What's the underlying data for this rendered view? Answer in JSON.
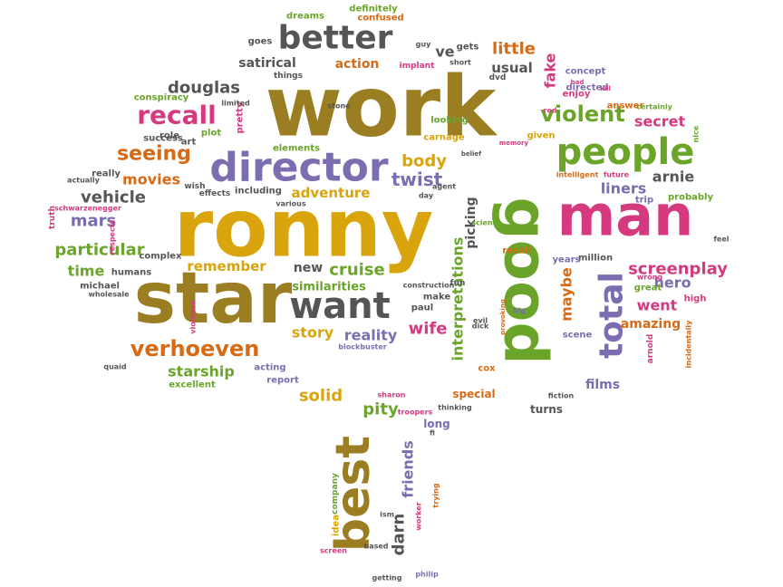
{
  "palette": {
    "olive": "#9b7d22",
    "gray": "#555555",
    "mustard": "#d9a40c",
    "orange": "#d86a16",
    "purple": "#7b6db0",
    "green": "#6aa52a",
    "pink": "#d63a7e"
  },
  "words": [
    "work",
    "ronny",
    "star",
    "good",
    "man",
    "best",
    "director",
    "people",
    "better",
    "total",
    "want",
    "violent",
    "recall",
    "douglas",
    "seeing",
    "verhoeven",
    "twist",
    "body",
    "vehicle",
    "mars",
    "particular",
    "time",
    "movies",
    "remember",
    "adventure",
    "new",
    "cruise",
    "reality",
    "story",
    "wife",
    "similarities",
    "starship",
    "solid",
    "pity",
    "friends",
    "darn",
    "picking",
    "interpretations",
    "maybe",
    "screenplay",
    "hero",
    "went",
    "amazing",
    "films",
    "secret",
    "arnie",
    "liners",
    "little",
    "usual",
    "fake",
    "action",
    "satirical",
    "ve",
    "dreams",
    "definitely",
    "confused",
    "goes",
    "gets",
    "implant",
    "conspiracy",
    "success",
    "role",
    "art",
    "plot",
    "pretty",
    "stone",
    "elements",
    "carnage",
    "looking",
    "given",
    "memory",
    "concept",
    "bad",
    "enjoy",
    "answer",
    "directed",
    "certainly",
    "nice",
    "future",
    "trip",
    "probably",
    "feel",
    "high",
    "great",
    "wrong",
    "arnold",
    "million",
    "years",
    "recall",
    "science",
    "construction",
    "make",
    "paul",
    "evil",
    "big",
    "scene",
    "fiction",
    "turns",
    "special",
    "cox",
    "long",
    "fi",
    "thinking",
    "troopers",
    "sharon",
    "report",
    "acting",
    "excellent",
    "michael",
    "wholesale",
    "quaid",
    "violence",
    "truth",
    "really",
    "actually",
    "schwarzenegger",
    "complex",
    "humans",
    "idea",
    "company",
    "based",
    "screen",
    "getting",
    "philip",
    "ism",
    "worker",
    "trying",
    "blockbuster",
    "intelligent",
    "red",
    "limited",
    "things",
    "wish",
    "effects",
    "including",
    "various",
    "day",
    "agent",
    "belief",
    "kill",
    "guy",
    "short",
    "dvd",
    "respects",
    "dick",
    "fun",
    "provoking",
    "incidentally"
  ]
}
